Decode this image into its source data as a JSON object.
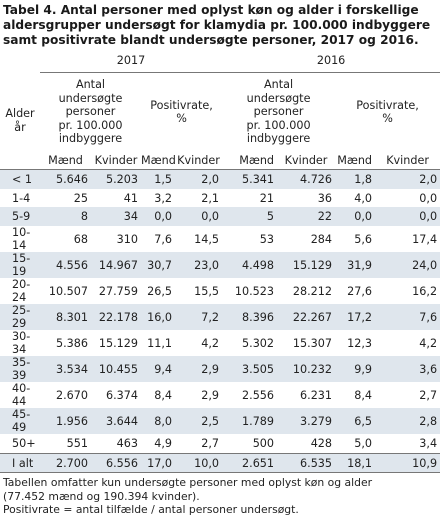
{
  "title_lines": [
    "Tabel 4. Antal personer med oplyst køn og alder i forskellige",
    "aldersgrupper undersøgt for klamydia pr. 100.000 indbyggere",
    "samt positivrate blandt undersøgte personer, 2017 og 2016."
  ],
  "years": [
    "2017",
    "2016"
  ],
  "header": {
    "age_label_line1": "Alder",
    "age_label_line2": "år",
    "count_label_lines": [
      "Antal",
      "undersøgte",
      "personer",
      "pr. 100.000",
      "indbyggere"
    ],
    "rate_label_lines": [
      "Positivrate,",
      "%"
    ],
    "sub": {
      "men": "Mænd",
      "women": "Kvinder"
    }
  },
  "rows": [
    {
      "age": "< 1",
      "c17": [
        "5.646",
        "5.203"
      ],
      "r17": [
        "1,5",
        "2,0"
      ],
      "c16": [
        "5.341",
        "4.726"
      ],
      "r16": [
        "1,8",
        "2,0"
      ]
    },
    {
      "age": "1-4",
      "c17": [
        "25",
        "41"
      ],
      "r17": [
        "3,2",
        "2,1"
      ],
      "c16": [
        "21",
        "36"
      ],
      "r16": [
        "4,0",
        "0,0"
      ]
    },
    {
      "age": "5-9",
      "c17": [
        "8",
        "34"
      ],
      "r17": [
        "0,0",
        "0,0"
      ],
      "c16": [
        "5",
        "22"
      ],
      "r16": [
        "0,0",
        "0,0"
      ]
    },
    {
      "age": "10-14",
      "c17": [
        "68",
        "310"
      ],
      "r17": [
        "7,6",
        "14,5"
      ],
      "c16": [
        "53",
        "284"
      ],
      "r16": [
        "5,6",
        "17,4"
      ]
    },
    {
      "age": "15-19",
      "c17": [
        "4.556",
        "14.967"
      ],
      "r17": [
        "30,7",
        "23,0"
      ],
      "c16": [
        "4.498",
        "15.129"
      ],
      "r16": [
        "31,9",
        "24,0"
      ]
    },
    {
      "age": "20-24",
      "c17": [
        "10.507",
        "27.759"
      ],
      "r17": [
        "26,5",
        "15,5"
      ],
      "c16": [
        "10.523",
        "28.212"
      ],
      "r16": [
        "27,6",
        "16,2"
      ]
    },
    {
      "age": "25-29",
      "c17": [
        "8.301",
        "22.178"
      ],
      "r17": [
        "16,0",
        "7,2"
      ],
      "c16": [
        "8.396",
        "22.267"
      ],
      "r16": [
        "17,2",
        "7,6"
      ]
    },
    {
      "age": "30-34",
      "c17": [
        "5.386",
        "15.129"
      ],
      "r17": [
        "11,1",
        "4,2"
      ],
      "c16": [
        "5.302",
        "15.307"
      ],
      "r16": [
        "12,3",
        "4,2"
      ]
    },
    {
      "age": "35-39",
      "c17": [
        "3.534",
        "10.455"
      ],
      "r17": [
        "9,4",
        "2,9"
      ],
      "c16": [
        "3.505",
        "10.232"
      ],
      "r16": [
        "9,9",
        "3,6"
      ]
    },
    {
      "age": "40-44",
      "c17": [
        "2.670",
        "6.374"
      ],
      "r17": [
        "8,4",
        "2,9"
      ],
      "c16": [
        "2.556",
        "6.231"
      ],
      "r16": [
        "8,4",
        "2,7"
      ]
    },
    {
      "age": "45-49",
      "c17": [
        "1.956",
        "3.644"
      ],
      "r17": [
        "8,0",
        "2,5"
      ],
      "c16": [
        "1.789",
        "3.279"
      ],
      "r16": [
        "6,5",
        "2,8"
      ]
    },
    {
      "age": "50+",
      "c17": [
        "551",
        "463"
      ],
      "r17": [
        "4,9",
        "2,7"
      ],
      "c16": [
        "500",
        "428"
      ],
      "r16": [
        "5,0",
        "3,4"
      ]
    },
    {
      "age": "I alt",
      "c17": [
        "2.700",
        "6.556"
      ],
      "r17": [
        "17,0",
        "10,0"
      ],
      "c16": [
        "2.651",
        "6.535"
      ],
      "r16": [
        "18,1",
        "10,9"
      ]
    }
  ],
  "notes": [
    "Tabellen omfatter kun undersøgte personer med oplyst køn og alder",
    "(77.452 mænd og 190.394 kvinder).",
    "Positivrate = antal tilfælde / antal personer undersøgt."
  ]
}
